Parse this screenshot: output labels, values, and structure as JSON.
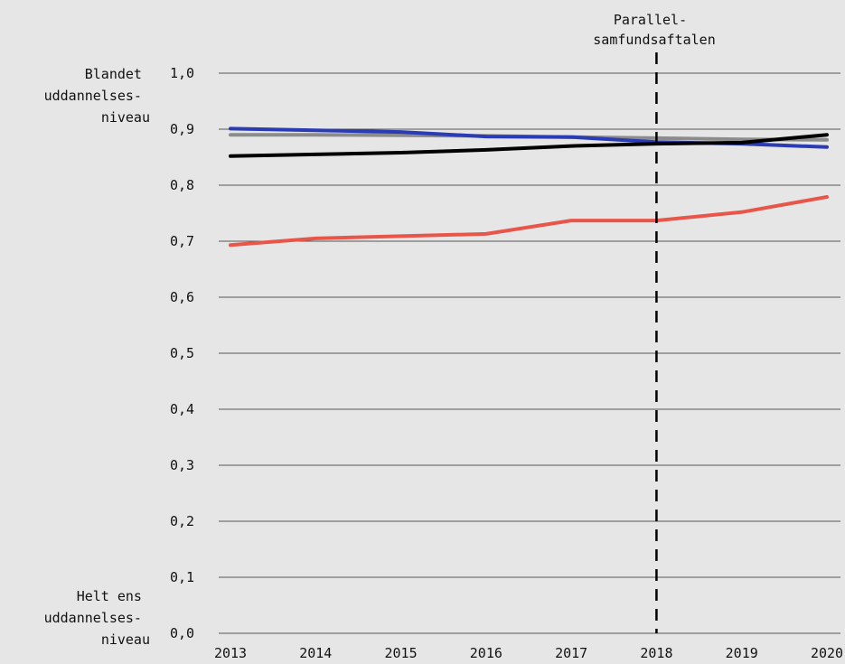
{
  "chart_data": {
    "type": "line",
    "x": [
      2013,
      2014,
      2015,
      2016,
      2017,
      2018,
      2019,
      2020
    ],
    "x_tick_labels": [
      "2013",
      "2014",
      "2015",
      "2016",
      "2017",
      "2018",
      "2019",
      "2020"
    ],
    "ylim": [
      0,
      1
    ],
    "y_tick_labels": [
      "1,0",
      "0,9",
      "0,8",
      "0,7",
      "0,6",
      "0,5",
      "0,4",
      "0,3",
      "0,2",
      "0,1",
      "0,0"
    ],
    "y_top_label": [
      "Blandet",
      "uddannelses-",
      "niveau"
    ],
    "y_bottom_label": [
      "Helt ens",
      "uddannelses-",
      "niveau"
    ],
    "grid": true,
    "series": [
      {
        "color": "#8c8c8c",
        "values": [
          0.89,
          0.89,
          0.889,
          0.888,
          0.886,
          0.884,
          0.882,
          0.881
        ]
      },
      {
        "color": "#2a3bb5",
        "values": [
          0.901,
          0.898,
          0.895,
          0.887,
          0.886,
          0.877,
          0.874,
          0.868
        ]
      },
      {
        "color": "#000000",
        "values": [
          0.852,
          0.855,
          0.858,
          0.863,
          0.87,
          0.874,
          0.876,
          0.89
        ]
      },
      {
        "color": "#e8564a",
        "values": [
          0.693,
          0.705,
          0.709,
          0.713,
          0.737,
          0.737,
          0.752,
          0.779
        ]
      }
    ],
    "vertical_marker": {
      "x": 2018,
      "label": [
        "Parallel-",
        "samfundsaftalen"
      ]
    }
  }
}
